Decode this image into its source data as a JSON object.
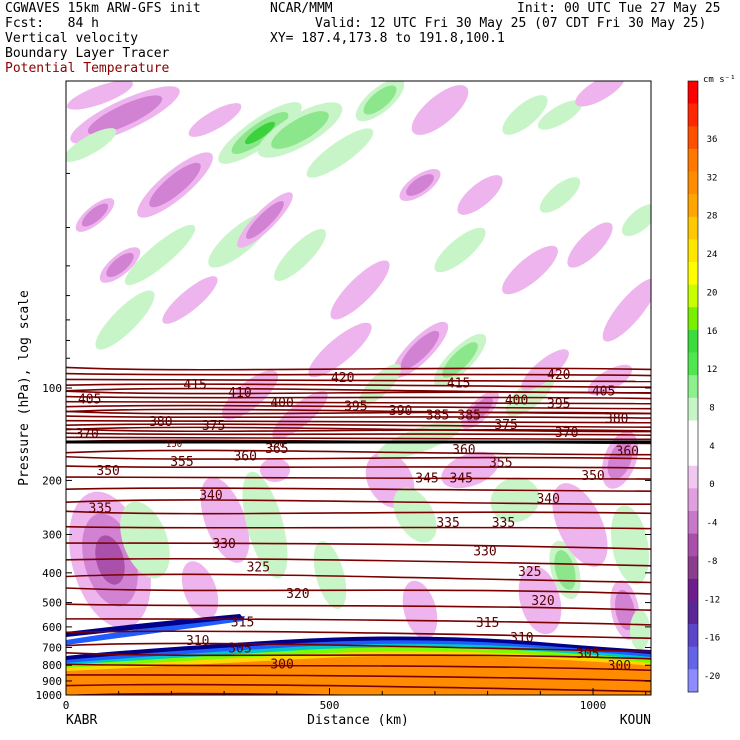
{
  "header": {
    "model": "CGWAVES 15km ARW-GFS init",
    "org": "NCAR/MMM",
    "init": "Init: 00 UTC Tue 27 May 25",
    "fcst": "Fcst:   84 h",
    "valid": "Valid: 12 UTC Fri 30 May 25 (07 CDT Fri 30 May 25)",
    "field1": "Vertical velocity",
    "field2": "Boundary Layer Tracer",
    "field3": "Potential Temperature",
    "xy": "XY= 187.4,173.8 to 191.8,100.1"
  },
  "colors": {
    "theta": "#7a0000",
    "tracer": [
      "#ff8c00",
      "#ffd700",
      "#7cfc00",
      "#00c8c8",
      "#1e5cff",
      "#00008b"
    ],
    "vv_pos": [
      "#ffffff",
      "#c8f5c8",
      "#8ce68c",
      "#3cd23c",
      "#00c800",
      "#c8ff00",
      "#ffff00",
      "#ffd700",
      "#ffa500",
      "#ff8c00",
      "#ff5a00",
      "#ff0000"
    ],
    "vv_neg": [
      "#ffffff",
      "#eeb4ee",
      "#d282d2",
      "#aa50aa",
      "#8c3c8c",
      "#6e1e8c",
      "#5a32b4",
      "#6464dc",
      "#8c8cf0"
    ]
  },
  "chart_data": {
    "type": "heatmap",
    "xlabel": "Distance (km)",
    "ylabel": "Pressure (hPa), log scale",
    "xlim": [
      0,
      1110
    ],
    "xticks": [
      0,
      500,
      1000
    ],
    "x_endpoints": [
      "KABR",
      "KOUN"
    ],
    "ylim": [
      1000,
      10
    ],
    "yscale": "log",
    "yticks": [
      100,
      200,
      300,
      400,
      500,
      600,
      700,
      800,
      900,
      1000
    ],
    "colorbar": {
      "units": "cm s⁻¹",
      "ticks": [
        36,
        32,
        28,
        24,
        20,
        16,
        12,
        8,
        4,
        0,
        -4,
        -8,
        -12,
        -16,
        -20
      ]
    },
    "theta_labels": [
      {
        "text": "415",
        "x": 245,
        "p": 97
      },
      {
        "text": "410",
        "x": 330,
        "p": 103
      },
      {
        "text": "420",
        "x": 525,
        "p": 92
      },
      {
        "text": "415",
        "x": 745,
        "p": 96
      },
      {
        "text": "420",
        "x": 935,
        "p": 90
      },
      {
        "text": "405",
        "x": 45,
        "p": 108
      },
      {
        "text": "400",
        "x": 410,
        "p": 111
      },
      {
        "text": "395",
        "x": 550,
        "p": 114
      },
      {
        "text": "390",
        "x": 635,
        "p": 118
      },
      {
        "text": "385",
        "x": 705,
        "p": 122
      },
      {
        "text": "385",
        "x": 765,
        "p": 122
      },
      {
        "text": "400",
        "x": 855,
        "p": 109
      },
      {
        "text": "395",
        "x": 935,
        "p": 112
      },
      {
        "text": "405",
        "x": 1020,
        "p": 102
      },
      {
        "text": "380",
        "x": 180,
        "p": 128
      },
      {
        "text": "375",
        "x": 280,
        "p": 132
      },
      {
        "text": "375",
        "x": 835,
        "p": 131
      },
      {
        "text": "380",
        "x": 1045,
        "p": 125
      },
      {
        "text": "370",
        "x": 40,
        "p": 140
      },
      {
        "text": "370",
        "x": 950,
        "p": 139
      },
      {
        "text": "365",
        "x": 400,
        "p": 157
      },
      {
        "text": "360",
        "x": 755,
        "p": 158
      },
      {
        "text": "360",
        "x": 1065,
        "p": 160
      },
      {
        "text": "355",
        "x": 220,
        "p": 173
      },
      {
        "text": "360",
        "x": 340,
        "p": 166
      },
      {
        "text": "355",
        "x": 825,
        "p": 174
      },
      {
        "text": "350",
        "x": 80,
        "p": 185
      },
      {
        "text": "350",
        "x": 1000,
        "p": 192
      },
      {
        "text": "345",
        "x": 685,
        "p": 196
      },
      {
        "text": "345",
        "x": 750,
        "p": 196
      },
      {
        "text": "340",
        "x": 275,
        "p": 222
      },
      {
        "text": "340",
        "x": 915,
        "p": 228
      },
      {
        "text": "335",
        "x": 65,
        "p": 245
      },
      {
        "text": "335",
        "x": 725,
        "p": 273
      },
      {
        "text": "335",
        "x": 830,
        "p": 273
      },
      {
        "text": "330",
        "x": 300,
        "p": 320
      },
      {
        "text": "330",
        "x": 795,
        "p": 338
      },
      {
        "text": "325",
        "x": 365,
        "p": 382
      },
      {
        "text": "325",
        "x": 880,
        "p": 394
      },
      {
        "text": "320",
        "x": 440,
        "p": 466
      },
      {
        "text": "320",
        "x": 905,
        "p": 491
      },
      {
        "text": "315",
        "x": 335,
        "p": 577
      },
      {
        "text": "315",
        "x": 800,
        "p": 578
      },
      {
        "text": "310",
        "x": 250,
        "p": 662
      },
      {
        "text": "310",
        "x": 865,
        "p": 648
      },
      {
        "text": "305",
        "x": 330,
        "p": 700
      },
      {
        "text": "305",
        "x": 990,
        "p": 730
      },
      {
        "text": "300",
        "x": 410,
        "p": 790
      },
      {
        "text": "300",
        "x": 1050,
        "p": 800
      },
      {
        "text": "150",
        "x": 205,
        "p": 150
      },
      {
        "text": "150",
        "x": 400,
        "p": 150
      }
    ],
    "tropopause_p": 150
  }
}
